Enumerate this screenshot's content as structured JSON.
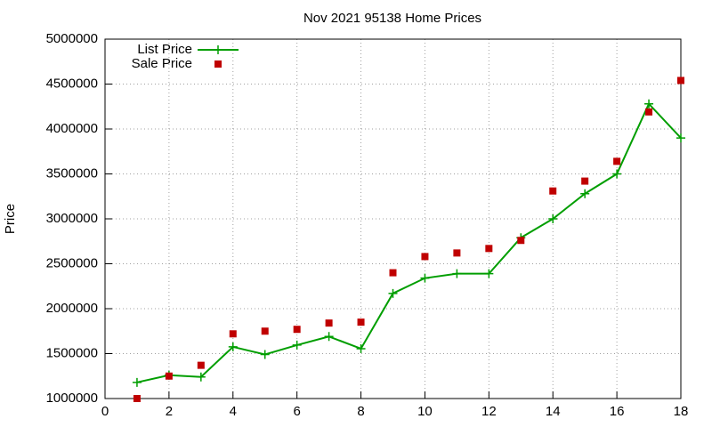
{
  "chart_data": {
    "type": "line",
    "title": "Nov 2021 95138 Home Prices",
    "ylabel": "Price",
    "x": [
      1,
      2,
      3,
      4,
      5,
      6,
      7,
      8,
      9,
      10,
      11,
      12,
      13,
      14,
      15,
      16,
      17,
      18
    ],
    "series": [
      {
        "name": "List Price",
        "color": "#009e00",
        "style": "linespoints",
        "values": [
          1180000,
          1260000,
          1240000,
          1575000,
          1490000,
          1595000,
          1690000,
          1555000,
          2170000,
          2340000,
          2390000,
          2390000,
          2790000,
          3000000,
          3280000,
          3500000,
          4280000,
          3900000
        ]
      },
      {
        "name": "Sale Price",
        "color": "#c00000",
        "style": "points",
        "values": [
          1000000,
          1250000,
          1370000,
          1720000,
          1750000,
          1770000,
          1840000,
          1850000,
          2400000,
          2580000,
          2620000,
          2670000,
          2760000,
          3310000,
          3420000,
          3640000,
          4190000,
          4540000
        ]
      }
    ],
    "xlim": [
      0,
      18
    ],
    "xticks": [
      0,
      2,
      4,
      6,
      8,
      10,
      12,
      14,
      16,
      18
    ],
    "ylim": [
      1000000,
      5000000
    ],
    "yticks": [
      1000000,
      1500000,
      2000000,
      2500000,
      3000000,
      3500000,
      4000000,
      4500000,
      5000000
    ],
    "grid": true,
    "legend": "top-left"
  }
}
